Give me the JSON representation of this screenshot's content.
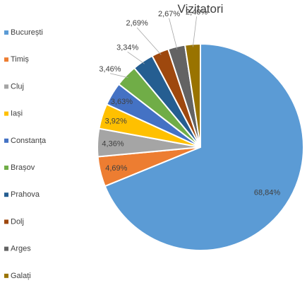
{
  "chart_data": {
    "type": "pie",
    "title": "Vizitatori",
    "legend_position": "left",
    "categories": [
      "București",
      "Timiș",
      "Cluj",
      "Iași",
      "Constanța",
      "Brașov",
      "Prahova",
      "Dolj",
      "Arges",
      "Galați"
    ],
    "values": [
      68.84,
      4.69,
      4.36,
      3.92,
      3.63,
      3.46,
      3.34,
      2.69,
      2.67,
      2.4
    ],
    "labels": [
      "68,84%",
      "4,69%",
      "4,36%",
      "3,92%",
      "3,63%",
      "3,46%",
      "3,34%",
      "2,69%",
      "2,67%",
      "2,40%"
    ],
    "colors": [
      "#5B9BD5",
      "#ED7D31",
      "#A5A5A5",
      "#FFC000",
      "#4472C4",
      "#70AD47",
      "#255E91",
      "#9E480E",
      "#636363",
      "#997300"
    ]
  }
}
